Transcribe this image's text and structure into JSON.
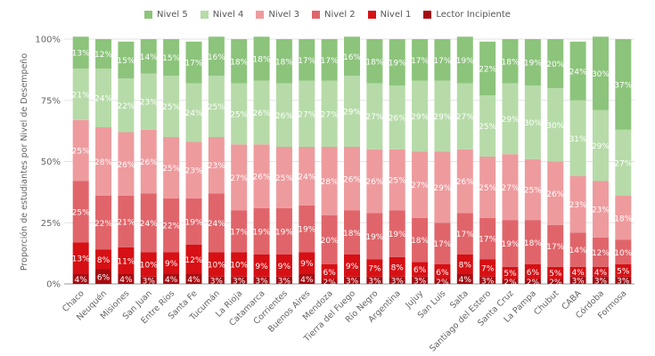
{
  "chart_data": {
    "type": "bar",
    "stacked": true,
    "percent": true,
    "title": "",
    "xlabel": "",
    "ylabel": "Proporción de estudiantes por Nivel de Desempeño",
    "ylim": [
      0,
      100
    ],
    "yticks": [
      "0%",
      "25%",
      "50%",
      "75%",
      "100%"
    ],
    "legend_position": "top-center",
    "categories": [
      "Chaco",
      "Neuquén",
      "Misiones",
      "San Juan",
      "Entre Ríos",
      "Santa Fe",
      "Tucumán",
      "La Rioja",
      "Catamarca",
      "Corrientes",
      "Buenos Aires",
      "Mendoza",
      "Tierra del Fuego",
      "Río Negro",
      "Argentina",
      "Jujuy",
      "San Luis",
      "Salta",
      "Santiago del Estero",
      "Santa Cruz",
      "La Pampa",
      "Chubut",
      "CABA",
      "Córdoba",
      "Formosa"
    ],
    "series": [
      {
        "name": "Lector Incipiente",
        "color": "#a50c12",
        "values": [
          4,
          6,
          4,
          3,
          4,
          4,
          3,
          3,
          3,
          3,
          4,
          2,
          3,
          3,
          3,
          3,
          2,
          4,
          3,
          2,
          2,
          2,
          3,
          3,
          3
        ]
      },
      {
        "name": "Nivel 1",
        "color": "#d61014",
        "values": [
          13,
          8,
          11,
          10,
          9,
          12,
          10,
          10,
          9,
          9,
          9,
          6,
          9,
          7,
          8,
          6,
          6,
          8,
          7,
          5,
          6,
          5,
          4,
          4,
          5
        ]
      },
      {
        "name": "Nivel 2",
        "color": "#e0656a",
        "values": [
          25,
          22,
          21,
          24,
          22,
          19,
          24,
          17,
          19,
          19,
          19,
          20,
          18,
          19,
          19,
          18,
          17,
          17,
          17,
          19,
          18,
          17,
          14,
          12,
          10
        ]
      },
      {
        "name": "Nivel 3",
        "color": "#ee9b9e",
        "values": [
          25,
          28,
          26,
          26,
          25,
          23,
          23,
          27,
          26,
          25,
          24,
          28,
          26,
          26,
          25,
          27,
          29,
          26,
          25,
          27,
          25,
          26,
          23,
          23,
          18
        ]
      },
      {
        "name": "Nivel 4",
        "color": "#b6dba8",
        "values": [
          21,
          24,
          22,
          23,
          25,
          24,
          25,
          25,
          26,
          26,
          27,
          27,
          29,
          27,
          26,
          29,
          29,
          27,
          25,
          29,
          30,
          30,
          31,
          29,
          27
        ]
      },
      {
        "name": "Nivel 5",
        "color": "#8cc47b",
        "values": [
          13,
          12,
          15,
          14,
          15,
          17,
          16,
          18,
          18,
          18,
          17,
          17,
          16,
          18,
          19,
          17,
          17,
          19,
          22,
          18,
          19,
          20,
          24,
          30,
          37
        ]
      }
    ],
    "legend_order": [
      "Nivel 5",
      "Nivel 4",
      "Nivel 3",
      "Nivel 2",
      "Nivel 1",
      "Lector Incipiente"
    ]
  }
}
